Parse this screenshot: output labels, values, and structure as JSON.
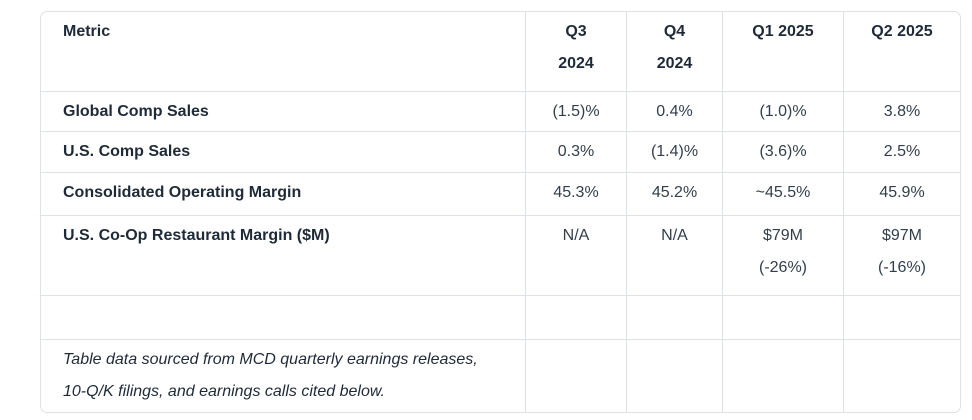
{
  "table": {
    "title_semantic": "Quarterly metrics table",
    "header": {
      "metric": "Metric",
      "q3_2024": {
        "line1": "Q3",
        "line2": "2024"
      },
      "q4_2024": {
        "line1": "Q4",
        "line2": "2024"
      },
      "q1_2025": {
        "line1": "Q1 2025"
      },
      "q2_2025": {
        "line1": "Q2 2025"
      }
    },
    "rows": [
      {
        "metric": "Global Comp Sales",
        "cells": [
          {
            "line1": "(1.5)%"
          },
          {
            "line1": "0.4%"
          },
          {
            "line1": "(1.0)%"
          },
          {
            "line1": "3.8%"
          }
        ]
      },
      {
        "metric": "U.S. Comp Sales",
        "cells": [
          {
            "line1": "0.3%"
          },
          {
            "line1": "(1.4)%"
          },
          {
            "line1": "(3.6)%"
          },
          {
            "line1": "2.5%"
          }
        ]
      },
      {
        "metric": "Consolidated Operating Margin",
        "cells": [
          {
            "line1": "45.3%"
          },
          {
            "line1": "45.2%"
          },
          {
            "line1": "~45.5%"
          },
          {
            "line1": "45.9%"
          }
        ]
      },
      {
        "metric": "U.S. Co-Op Restaurant Margin ($M)",
        "cells": [
          {
            "line1": "N/A"
          },
          {
            "line1": "N/A"
          },
          {
            "line1": "$79M",
            "line2": "(-26%)"
          },
          {
            "line1": "$97M",
            "line2": "(-16%)"
          }
        ]
      }
    ],
    "footnote": {
      "line1": "Table data sourced from MCD quarterly earnings releases,",
      "line2": "10-Q/K filings, and earnings calls cited below."
    }
  },
  "colors": {
    "border": "#dee2e6",
    "heading_text": "#1f2a38",
    "body_text": "#323e4b",
    "bg": "#ffffff"
  }
}
